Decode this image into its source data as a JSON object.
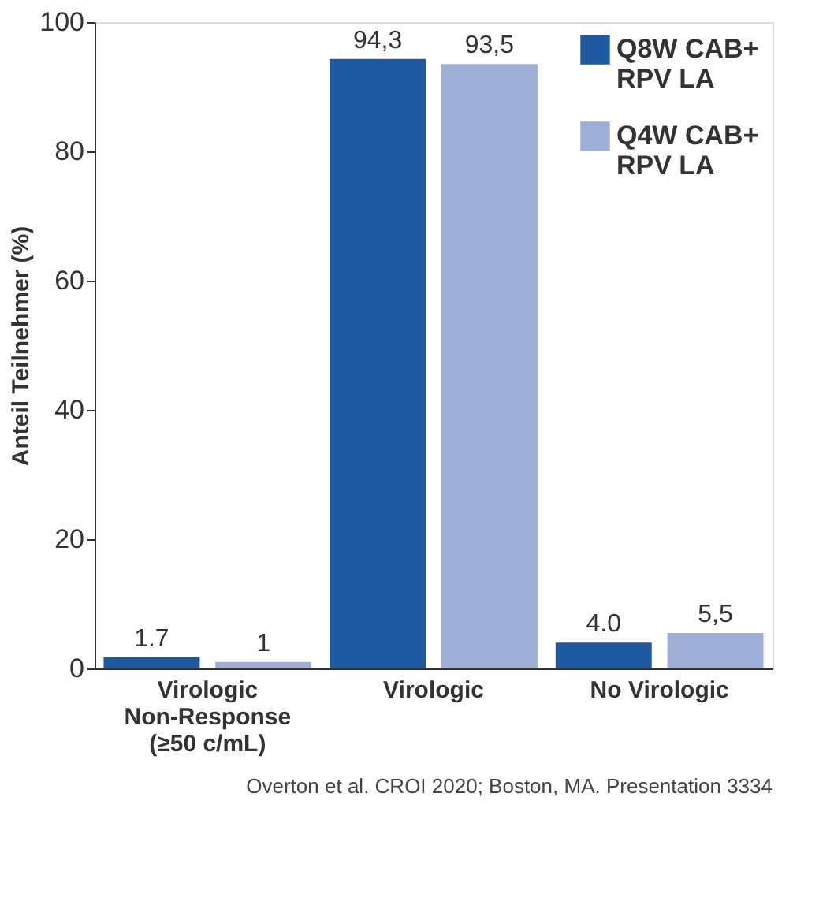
{
  "chart_data": {
    "type": "bar",
    "ylabel": "Anteil Teilnehmer (%)",
    "categories": [
      "Virologic\nNon-Response\n(≥50 c/mL)",
      "Virologic",
      "No Virologic"
    ],
    "series": [
      {
        "name": "Q8W CAB+\nRPV LA",
        "color": "#1f5aa0",
        "values": [
          1.7,
          94.3,
          4.0
        ],
        "value_labels": [
          "1.7",
          "94,3",
          "4.0"
        ]
      },
      {
        "name": "Q4W CAB+\nRPV LA",
        "color": "#9dafd7",
        "values": [
          1.0,
          93.5,
          5.5
        ],
        "value_labels": [
          "1",
          "93,5",
          "5,5"
        ]
      }
    ],
    "ylim": [
      0,
      100
    ],
    "yticks": [
      0,
      20,
      40,
      60,
      80,
      100
    ],
    "grid": false,
    "legend": "top right",
    "annotations": [
      "Overton et al. CROI 2020; Boston, MA. Presentation 3334"
    ]
  }
}
